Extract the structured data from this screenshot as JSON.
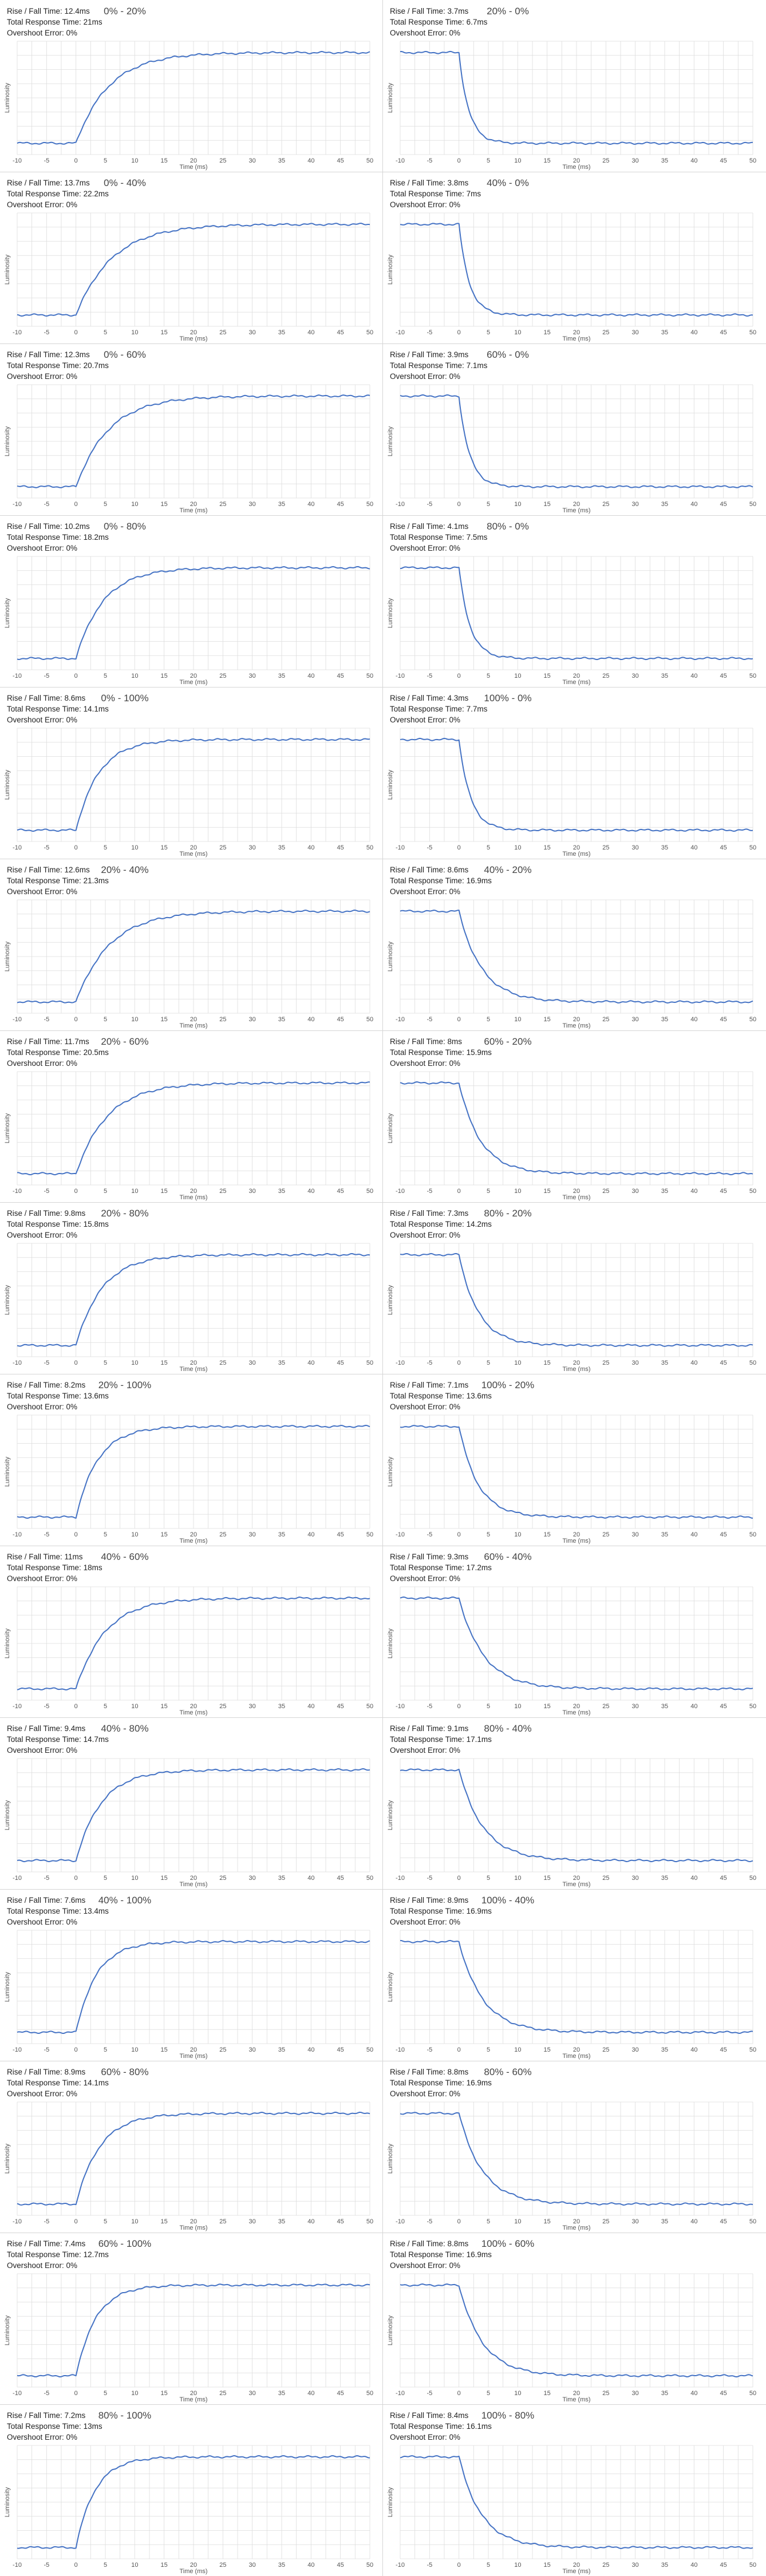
{
  "colors": {
    "line": "#4472c4",
    "grid": "#dcdcdc",
    "separator": "#d5d5d5",
    "tick": "#555555"
  },
  "chart_data": [
    {
      "type": "line",
      "title": "0% - 20%",
      "rise_fall": "Rise / Fall Time: 12.4ms",
      "total": "Total Response Time: 21ms",
      "overshoot": "Overshoot Error: 0%",
      "xlabel": "Time (ms)",
      "ylabel": "Luminosity",
      "x_ticks": [
        -10,
        -5,
        0,
        5,
        10,
        15,
        20,
        25,
        30,
        35,
        40,
        45,
        50
      ],
      "xlim": [
        -10,
        50
      ],
      "ylim": [
        0,
        1
      ],
      "start": 0.1,
      "end": 0.9,
      "t0": 0,
      "rise_time_ms": 12.4,
      "grid": true
    },
    {
      "type": "line",
      "title": "20% - 0%",
      "rise_fall": "Rise / Fall Time: 3.7ms",
      "total": "Total Response Time: 6.7ms",
      "overshoot": "Overshoot Error: 0%",
      "xlabel": "Time (ms)",
      "ylabel": "Luminosity",
      "x_ticks": [
        -10,
        -5,
        0,
        5,
        10,
        15,
        20,
        25,
        30,
        35,
        40,
        45,
        50
      ],
      "xlim": [
        -10,
        50
      ],
      "ylim": [
        0,
        1
      ],
      "start": 0.9,
      "end": 0.1,
      "t0": 0,
      "rise_time_ms": 3.7,
      "grid": true
    },
    {
      "type": "line",
      "title": "0% - 40%",
      "rise_fall": "Rise / Fall Time: 13.7ms",
      "total": "Total Response Time: 22.2ms",
      "overshoot": "Overshoot Error: 0%",
      "xlabel": "Time (ms)",
      "ylabel": "Luminosity",
      "x_ticks": [
        -10,
        -5,
        0,
        5,
        10,
        15,
        20,
        25,
        30,
        35,
        40,
        45,
        50
      ],
      "xlim": [
        -10,
        50
      ],
      "ylim": [
        0,
        1
      ],
      "start": 0.1,
      "end": 0.9,
      "t0": 0,
      "rise_time_ms": 13.7,
      "grid": true
    },
    {
      "type": "line",
      "title": "40% - 0%",
      "rise_fall": "Rise / Fall Time: 3.8ms",
      "total": "Total Response Time: 7ms",
      "overshoot": "Overshoot Error: 0%",
      "xlabel": "Time (ms)",
      "ylabel": "Luminosity",
      "x_ticks": [
        -10,
        -5,
        0,
        5,
        10,
        15,
        20,
        25,
        30,
        35,
        40,
        45,
        50
      ],
      "xlim": [
        -10,
        50
      ],
      "ylim": [
        0,
        1
      ],
      "start": 0.9,
      "end": 0.1,
      "t0": 0,
      "rise_time_ms": 3.8,
      "grid": true
    },
    {
      "type": "line",
      "title": "0% - 60%",
      "rise_fall": "Rise / Fall Time: 12.3ms",
      "total": "Total Response Time: 20.7ms",
      "overshoot": "Overshoot Error: 0%",
      "xlabel": "Time (ms)",
      "ylabel": "Luminosity",
      "x_ticks": [
        -10,
        -5,
        0,
        5,
        10,
        15,
        20,
        25,
        30,
        35,
        40,
        45,
        50
      ],
      "xlim": [
        -10,
        50
      ],
      "ylim": [
        0,
        1
      ],
      "start": 0.1,
      "end": 0.9,
      "t0": 0,
      "rise_time_ms": 12.3,
      "grid": true
    },
    {
      "type": "line",
      "title": "60% - 0%",
      "rise_fall": "Rise / Fall Time: 3.9ms",
      "total": "Total Response Time: 7.1ms",
      "overshoot": "Overshoot Error: 0%",
      "xlabel": "Time (ms)",
      "ylabel": "Luminosity",
      "x_ticks": [
        -10,
        -5,
        0,
        5,
        10,
        15,
        20,
        25,
        30,
        35,
        40,
        45,
        50
      ],
      "xlim": [
        -10,
        50
      ],
      "ylim": [
        0,
        1
      ],
      "start": 0.9,
      "end": 0.1,
      "t0": 0,
      "rise_time_ms": 3.9,
      "grid": true
    },
    {
      "type": "line",
      "title": "0% - 80%",
      "rise_fall": "Rise / Fall Time: 10.2ms",
      "total": "Total Response Time: 18.2ms",
      "overshoot": "Overshoot Error: 0%",
      "xlabel": "Time (ms)",
      "ylabel": "Luminosity",
      "x_ticks": [
        -10,
        -5,
        0,
        5,
        10,
        15,
        20,
        25,
        30,
        35,
        40,
        45,
        50
      ],
      "xlim": [
        -10,
        50
      ],
      "ylim": [
        0,
        1
      ],
      "start": 0.1,
      "end": 0.9,
      "t0": 0,
      "rise_time_ms": 10.2,
      "grid": true
    },
    {
      "type": "line",
      "title": "80% - 0%",
      "rise_fall": "Rise / Fall Time: 4.1ms",
      "total": "Total Response Time: 7.5ms",
      "overshoot": "Overshoot Error: 0%",
      "xlabel": "Time (ms)",
      "ylabel": "Luminosity",
      "x_ticks": [
        -10,
        -5,
        0,
        5,
        10,
        15,
        20,
        25,
        30,
        35,
        40,
        45,
        50
      ],
      "xlim": [
        -10,
        50
      ],
      "ylim": [
        0,
        1
      ],
      "start": 0.9,
      "end": 0.1,
      "t0": 0,
      "rise_time_ms": 4.1,
      "grid": true
    },
    {
      "type": "line",
      "title": "0% - 100%",
      "rise_fall": "Rise / Fall Time: 8.6ms",
      "total": "Total Response Time: 14.1ms",
      "overshoot": "Overshoot Error: 0%",
      "xlabel": "Time (ms)",
      "ylabel": "Luminosity",
      "x_ticks": [
        -10,
        -5,
        0,
        5,
        10,
        15,
        20,
        25,
        30,
        35,
        40,
        45,
        50
      ],
      "xlim": [
        -10,
        50
      ],
      "ylim": [
        0,
        1
      ],
      "start": 0.1,
      "end": 0.9,
      "t0": 0,
      "rise_time_ms": 8.6,
      "grid": true
    },
    {
      "type": "line",
      "title": "100% - 0%",
      "rise_fall": "Rise / Fall Time: 4.3ms",
      "total": "Total Response Time: 7.7ms",
      "overshoot": "Overshoot Error: 0%",
      "xlabel": "Time (ms)",
      "ylabel": "Luminosity",
      "x_ticks": [
        -10,
        -5,
        0,
        5,
        10,
        15,
        20,
        25,
        30,
        35,
        40,
        45,
        50
      ],
      "xlim": [
        -10,
        50
      ],
      "ylim": [
        0,
        1
      ],
      "start": 0.9,
      "end": 0.1,
      "t0": 0,
      "rise_time_ms": 4.3,
      "grid": true
    },
    {
      "type": "line",
      "title": "20% - 40%",
      "rise_fall": "Rise / Fall Time: 12.6ms",
      "total": "Total Response Time: 21.3ms",
      "overshoot": "Overshoot Error: 0%",
      "xlabel": "Time (ms)",
      "ylabel": "Luminosity",
      "x_ticks": [
        -10,
        -5,
        0,
        5,
        10,
        15,
        20,
        25,
        30,
        35,
        40,
        45,
        50
      ],
      "xlim": [
        -10,
        50
      ],
      "ylim": [
        0,
        1
      ],
      "start": 0.1,
      "end": 0.9,
      "t0": 0,
      "rise_time_ms": 12.6,
      "grid": true
    },
    {
      "type": "line",
      "title": "40% - 20%",
      "rise_fall": "Rise / Fall Time: 8.6ms",
      "total": "Total Response Time: 16.9ms",
      "overshoot": "Overshoot Error: 0%",
      "xlabel": "Time (ms)",
      "ylabel": "Luminosity",
      "x_ticks": [
        -10,
        -5,
        0,
        5,
        10,
        15,
        20,
        25,
        30,
        35,
        40,
        45,
        50
      ],
      "xlim": [
        -10,
        50
      ],
      "ylim": [
        0,
        1
      ],
      "start": 0.9,
      "end": 0.1,
      "t0": 0,
      "rise_time_ms": 8.6,
      "grid": true
    },
    {
      "type": "line",
      "title": "20% - 60%",
      "rise_fall": "Rise / Fall Time: 11.7ms",
      "total": "Total Response Time: 20.5ms",
      "overshoot": "Overshoot Error: 0%",
      "xlabel": "Time (ms)",
      "ylabel": "Luminosity",
      "x_ticks": [
        -10,
        -5,
        0,
        5,
        10,
        15,
        20,
        25,
        30,
        35,
        40,
        45,
        50
      ],
      "xlim": [
        -10,
        50
      ],
      "ylim": [
        0,
        1
      ],
      "start": 0.1,
      "end": 0.9,
      "t0": 0,
      "rise_time_ms": 11.7,
      "grid": true
    },
    {
      "type": "line",
      "title": "60% - 20%",
      "rise_fall": "Rise / Fall Time: 8ms",
      "total": "Total Response Time: 15.9ms",
      "overshoot": "Overshoot Error: 0%",
      "xlabel": "Time (ms)",
      "ylabel": "Luminosity",
      "x_ticks": [
        -10,
        -5,
        0,
        5,
        10,
        15,
        20,
        25,
        30,
        35,
        40,
        45,
        50
      ],
      "xlim": [
        -10,
        50
      ],
      "ylim": [
        0,
        1
      ],
      "start": 0.9,
      "end": 0.1,
      "t0": 0,
      "rise_time_ms": 8,
      "grid": true
    },
    {
      "type": "line",
      "title": "20% - 80%",
      "rise_fall": "Rise / Fall Time: 9.8ms",
      "total": "Total Response Time: 15.8ms",
      "overshoot": "Overshoot Error: 0%",
      "xlabel": "Time (ms)",
      "ylabel": "Luminosity",
      "x_ticks": [
        -10,
        -5,
        0,
        5,
        10,
        15,
        20,
        25,
        30,
        35,
        40,
        45,
        50
      ],
      "xlim": [
        -10,
        50
      ],
      "ylim": [
        0,
        1
      ],
      "start": 0.1,
      "end": 0.9,
      "t0": 0,
      "rise_time_ms": 9.8,
      "grid": true
    },
    {
      "type": "line",
      "title": "80% - 20%",
      "rise_fall": "Rise / Fall Time: 7.3ms",
      "total": "Total Response Time: 14.2ms",
      "overshoot": "Overshoot Error: 0%",
      "xlabel": "Time (ms)",
      "ylabel": "Luminosity",
      "x_ticks": [
        -10,
        -5,
        0,
        5,
        10,
        15,
        20,
        25,
        30,
        35,
        40,
        45,
        50
      ],
      "xlim": [
        -10,
        50
      ],
      "ylim": [
        0,
        1
      ],
      "start": 0.9,
      "end": 0.1,
      "t0": 0,
      "rise_time_ms": 7.3,
      "grid": true
    },
    {
      "type": "line",
      "title": "20% - 100%",
      "rise_fall": "Rise / Fall Time: 8.2ms",
      "total": "Total Response Time: 13.6ms",
      "overshoot": "Overshoot Error: 0%",
      "xlabel": "Time (ms)",
      "ylabel": "Luminosity",
      "x_ticks": [
        -10,
        -5,
        0,
        5,
        10,
        15,
        20,
        25,
        30,
        35,
        40,
        45,
        50
      ],
      "xlim": [
        -10,
        50
      ],
      "ylim": [
        0,
        1
      ],
      "start": 0.1,
      "end": 0.9,
      "t0": 0,
      "rise_time_ms": 8.2,
      "grid": true
    },
    {
      "type": "line",
      "title": "100% - 20%",
      "rise_fall": "Rise / Fall Time: 7.1ms",
      "total": "Total Response Time: 13.6ms",
      "overshoot": "Overshoot Error: 0%",
      "xlabel": "Time (ms)",
      "ylabel": "Luminosity",
      "x_ticks": [
        -10,
        -5,
        0,
        5,
        10,
        15,
        20,
        25,
        30,
        35,
        40,
        45,
        50
      ],
      "xlim": [
        -10,
        50
      ],
      "ylim": [
        0,
        1
      ],
      "start": 0.9,
      "end": 0.1,
      "t0": 0,
      "rise_time_ms": 7.1,
      "grid": true
    },
    {
      "type": "line",
      "title": "40% - 60%",
      "rise_fall": "Rise / Fall Time: 11ms",
      "total": "Total Response Time: 18ms",
      "overshoot": "Overshoot Error: 0%",
      "xlabel": "Time (ms)",
      "ylabel": "Luminosity",
      "x_ticks": [
        -10,
        -5,
        0,
        5,
        10,
        15,
        20,
        25,
        30,
        35,
        40,
        45,
        50
      ],
      "xlim": [
        -10,
        50
      ],
      "ylim": [
        0,
        1
      ],
      "start": 0.1,
      "end": 0.9,
      "t0": 0,
      "rise_time_ms": 11,
      "grid": true
    },
    {
      "type": "line",
      "title": "60% - 40%",
      "rise_fall": "Rise / Fall Time: 9.3ms",
      "total": "Total Response Time: 17.2ms",
      "overshoot": "Overshoot Error: 0%",
      "xlabel": "Time (ms)",
      "ylabel": "Luminosity",
      "x_ticks": [
        -10,
        -5,
        0,
        5,
        10,
        15,
        20,
        25,
        30,
        35,
        40,
        45,
        50
      ],
      "xlim": [
        -10,
        50
      ],
      "ylim": [
        0,
        1
      ],
      "start": 0.9,
      "end": 0.1,
      "t0": 0,
      "rise_time_ms": 9.3,
      "grid": true
    },
    {
      "type": "line",
      "title": "40% - 80%",
      "rise_fall": "Rise / Fall Time: 9.4ms",
      "total": "Total Response Time: 14.7ms",
      "overshoot": "Overshoot Error: 0%",
      "xlabel": "Time (ms)",
      "ylabel": "Luminosity",
      "x_ticks": [
        -10,
        -5,
        0,
        5,
        10,
        15,
        20,
        25,
        30,
        35,
        40,
        45,
        50
      ],
      "xlim": [
        -10,
        50
      ],
      "ylim": [
        0,
        1
      ],
      "start": 0.1,
      "end": 0.9,
      "t0": 0,
      "rise_time_ms": 9.4,
      "grid": true
    },
    {
      "type": "line",
      "title": "80% - 40%",
      "rise_fall": "Rise / Fall Time: 9.1ms",
      "total": "Total Response Time: 17.1ms",
      "overshoot": "Overshoot Error: 0%",
      "xlabel": "Time (ms)",
      "ylabel": "Luminosity",
      "x_ticks": [
        -10,
        -5,
        0,
        5,
        10,
        15,
        20,
        25,
        30,
        35,
        40,
        45,
        50
      ],
      "xlim": [
        -10,
        50
      ],
      "ylim": [
        0,
        1
      ],
      "start": 0.9,
      "end": 0.1,
      "t0": 0,
      "rise_time_ms": 9.1,
      "grid": true
    },
    {
      "type": "line",
      "title": "40% - 100%",
      "rise_fall": "Rise / Fall Time: 7.6ms",
      "total": "Total Response Time: 13.4ms",
      "overshoot": "Overshoot Error: 0%",
      "xlabel": "Time (ms)",
      "ylabel": "Luminosity",
      "x_ticks": [
        -10,
        -5,
        0,
        5,
        10,
        15,
        20,
        25,
        30,
        35,
        40,
        45,
        50
      ],
      "xlim": [
        -10,
        50
      ],
      "ylim": [
        0,
        1
      ],
      "start": 0.1,
      "end": 0.9,
      "t0": 0,
      "rise_time_ms": 7.6,
      "grid": true
    },
    {
      "type": "line",
      "title": "100% - 40%",
      "rise_fall": "Rise / Fall Time: 8.9ms",
      "total": "Total Response Time: 16.9ms",
      "overshoot": "Overshoot Error: 0%",
      "xlabel": "Time (ms)",
      "ylabel": "Luminosity",
      "x_ticks": [
        -10,
        -5,
        0,
        5,
        10,
        15,
        20,
        25,
        30,
        35,
        40,
        45,
        50
      ],
      "xlim": [
        -10,
        50
      ],
      "ylim": [
        0,
        1
      ],
      "start": 0.9,
      "end": 0.1,
      "t0": 0,
      "rise_time_ms": 8.9,
      "grid": true
    },
    {
      "type": "line",
      "title": "60% - 80%",
      "rise_fall": "Rise / Fall Time: 8.9ms",
      "total": "Total Response Time: 14.1ms",
      "overshoot": "Overshoot Error: 0%",
      "xlabel": "Time (ms)",
      "ylabel": "Luminosity",
      "x_ticks": [
        -10,
        -5,
        0,
        5,
        10,
        15,
        20,
        25,
        30,
        35,
        40,
        45,
        50
      ],
      "xlim": [
        -10,
        50
      ],
      "ylim": [
        0,
        1
      ],
      "start": 0.1,
      "end": 0.9,
      "t0": 0,
      "rise_time_ms": 8.9,
      "grid": true
    },
    {
      "type": "line",
      "title": "80% - 60%",
      "rise_fall": "Rise / Fall Time: 8.8ms",
      "total": "Total Response Time: 16.9ms",
      "overshoot": "Overshoot Error: 0%",
      "xlabel": "Time (ms)",
      "ylabel": "Luminosity",
      "x_ticks": [
        -10,
        -5,
        0,
        5,
        10,
        15,
        20,
        25,
        30,
        35,
        40,
        45,
        50
      ],
      "xlim": [
        -10,
        50
      ],
      "ylim": [
        0,
        1
      ],
      "start": 0.9,
      "end": 0.1,
      "t0": 0,
      "rise_time_ms": 8.8,
      "grid": true
    },
    {
      "type": "line",
      "title": "60% - 100%",
      "rise_fall": "Rise / Fall Time: 7.4ms",
      "total": "Total Response Time: 12.7ms",
      "overshoot": "Overshoot Error: 0%",
      "xlabel": "Time (ms)",
      "ylabel": "Luminosity",
      "x_ticks": [
        -10,
        -5,
        0,
        5,
        10,
        15,
        20,
        25,
        30,
        35,
        40,
        45,
        50
      ],
      "xlim": [
        -10,
        50
      ],
      "ylim": [
        0,
        1
      ],
      "start": 0.1,
      "end": 0.9,
      "t0": 0,
      "rise_time_ms": 7.4,
      "grid": true
    },
    {
      "type": "line",
      "title": "100% - 60%",
      "rise_fall": "Rise / Fall Time: 8.8ms",
      "total": "Total Response Time: 16.9ms",
      "overshoot": "Overshoot Error: 0%",
      "xlabel": "Time (ms)",
      "ylabel": "Luminosity",
      "x_ticks": [
        -10,
        -5,
        0,
        5,
        10,
        15,
        20,
        25,
        30,
        35,
        40,
        45,
        50
      ],
      "xlim": [
        -10,
        50
      ],
      "ylim": [
        0,
        1
      ],
      "start": 0.9,
      "end": 0.1,
      "t0": 0,
      "rise_time_ms": 8.8,
      "grid": true
    },
    {
      "type": "line",
      "title": "80% - 100%",
      "rise_fall": "Rise / Fall Time: 7.2ms",
      "total": "Total Response Time: 13ms",
      "overshoot": "Overshoot Error: 0%",
      "xlabel": "Time (ms)",
      "ylabel": "Luminosity",
      "x_ticks": [
        -10,
        -5,
        0,
        5,
        10,
        15,
        20,
        25,
        30,
        35,
        40,
        45,
        50
      ],
      "xlim": [
        -10,
        50
      ],
      "ylim": [
        0,
        1
      ],
      "start": 0.1,
      "end": 0.9,
      "t0": 0,
      "rise_time_ms": 7.2,
      "grid": true
    },
    {
      "type": "line",
      "title": "100% - 80%",
      "rise_fall": "Rise / Fall Time: 8.4ms",
      "total": "Total Response Time: 16.1ms",
      "overshoot": "Overshoot Error: 0%",
      "xlabel": "Time (ms)",
      "ylabel": "Luminosity",
      "x_ticks": [
        -10,
        -5,
        0,
        5,
        10,
        15,
        20,
        25,
        30,
        35,
        40,
        45,
        50
      ],
      "xlim": [
        -10,
        50
      ],
      "ylim": [
        0,
        1
      ],
      "start": 0.9,
      "end": 0.1,
      "t0": 0,
      "rise_time_ms": 8.4,
      "grid": true
    }
  ]
}
